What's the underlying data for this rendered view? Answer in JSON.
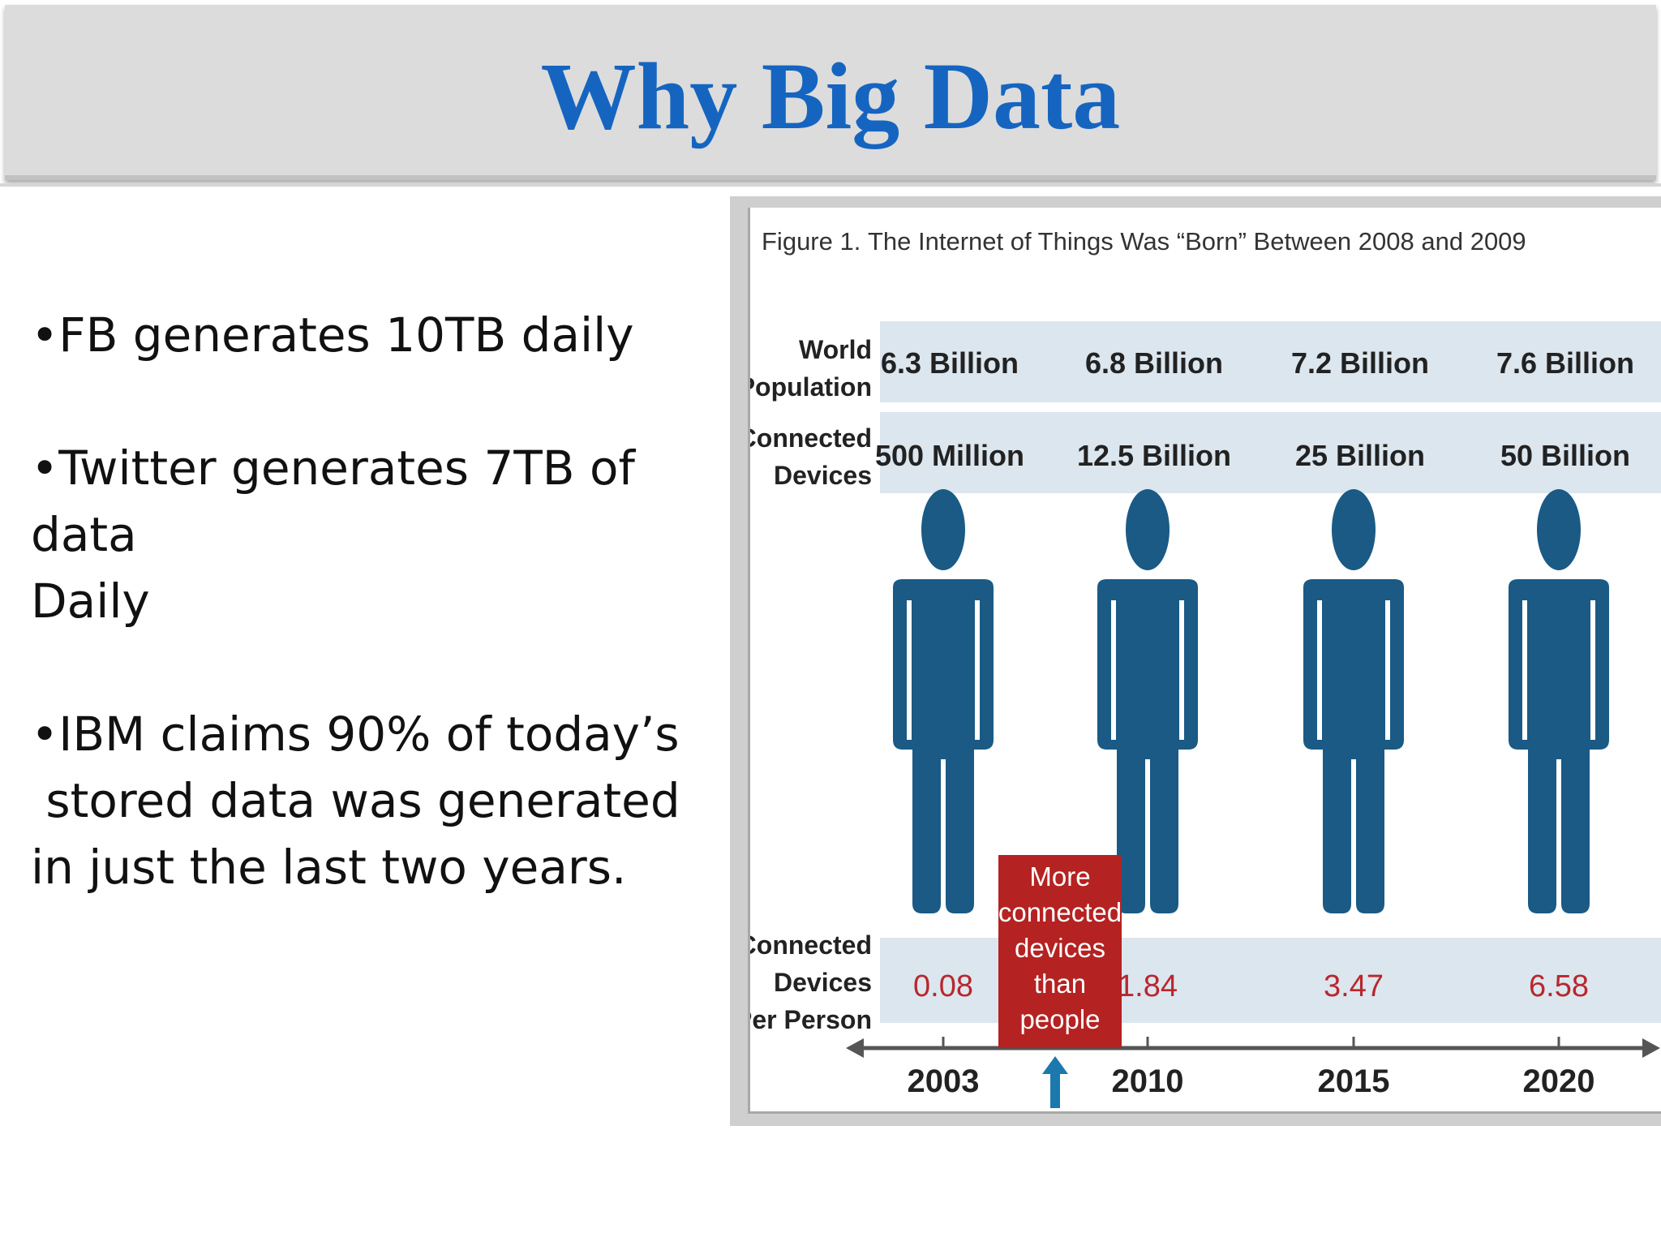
{
  "slide": {
    "title": "Why Big Data",
    "title_color": "#1565C0",
    "bullets": [
      {
        "lines": [
          "•FB generates 10TB daily"
        ]
      },
      {
        "lines": [
          "•Twitter generates 7TB of",
          "data",
          "Daily"
        ]
      },
      {
        "lines": [
          "•IBM claims 90% of today’s",
          " stored data was generated",
          "in just the last two years."
        ]
      }
    ]
  },
  "figure": {
    "label": "Figure 1.",
    "caption": "The Internet of Things Was “Born” Between 2008 and 2009",
    "rows": {
      "world_population": {
        "label_lines": [
          "World",
          "Population"
        ]
      },
      "connected_devices": {
        "label_lines": [
          "Connected",
          "Devices"
        ]
      },
      "per_person": {
        "label_lines": [
          "Connected",
          "Devices",
          "Per Person"
        ]
      }
    },
    "columns": [
      {
        "year": "2003",
        "population": "6.3 Billion",
        "devices": "500 Million",
        "per_person": "0.08"
      },
      {
        "year": "2010",
        "population": "6.8 Billion",
        "devices": "12.5 Billion",
        "per_person": "1.84"
      },
      {
        "year": "2015",
        "population": "7.2 Billion",
        "devices": "25 Billion",
        "per_person": "3.47"
      },
      {
        "year": "2020",
        "population": "7.6 Billion",
        "devices": "50 Billion",
        "per_person": "6.58"
      }
    ],
    "callout_lines": [
      "More",
      "connected",
      "devices",
      "than",
      "people"
    ],
    "colors": {
      "person": "#1a5a85",
      "row_band": "#dce6ee",
      "value_red": "#b8272e",
      "callout_bg": "#b52222",
      "arrow": "#1c79ad",
      "axis": "#555555"
    }
  }
}
